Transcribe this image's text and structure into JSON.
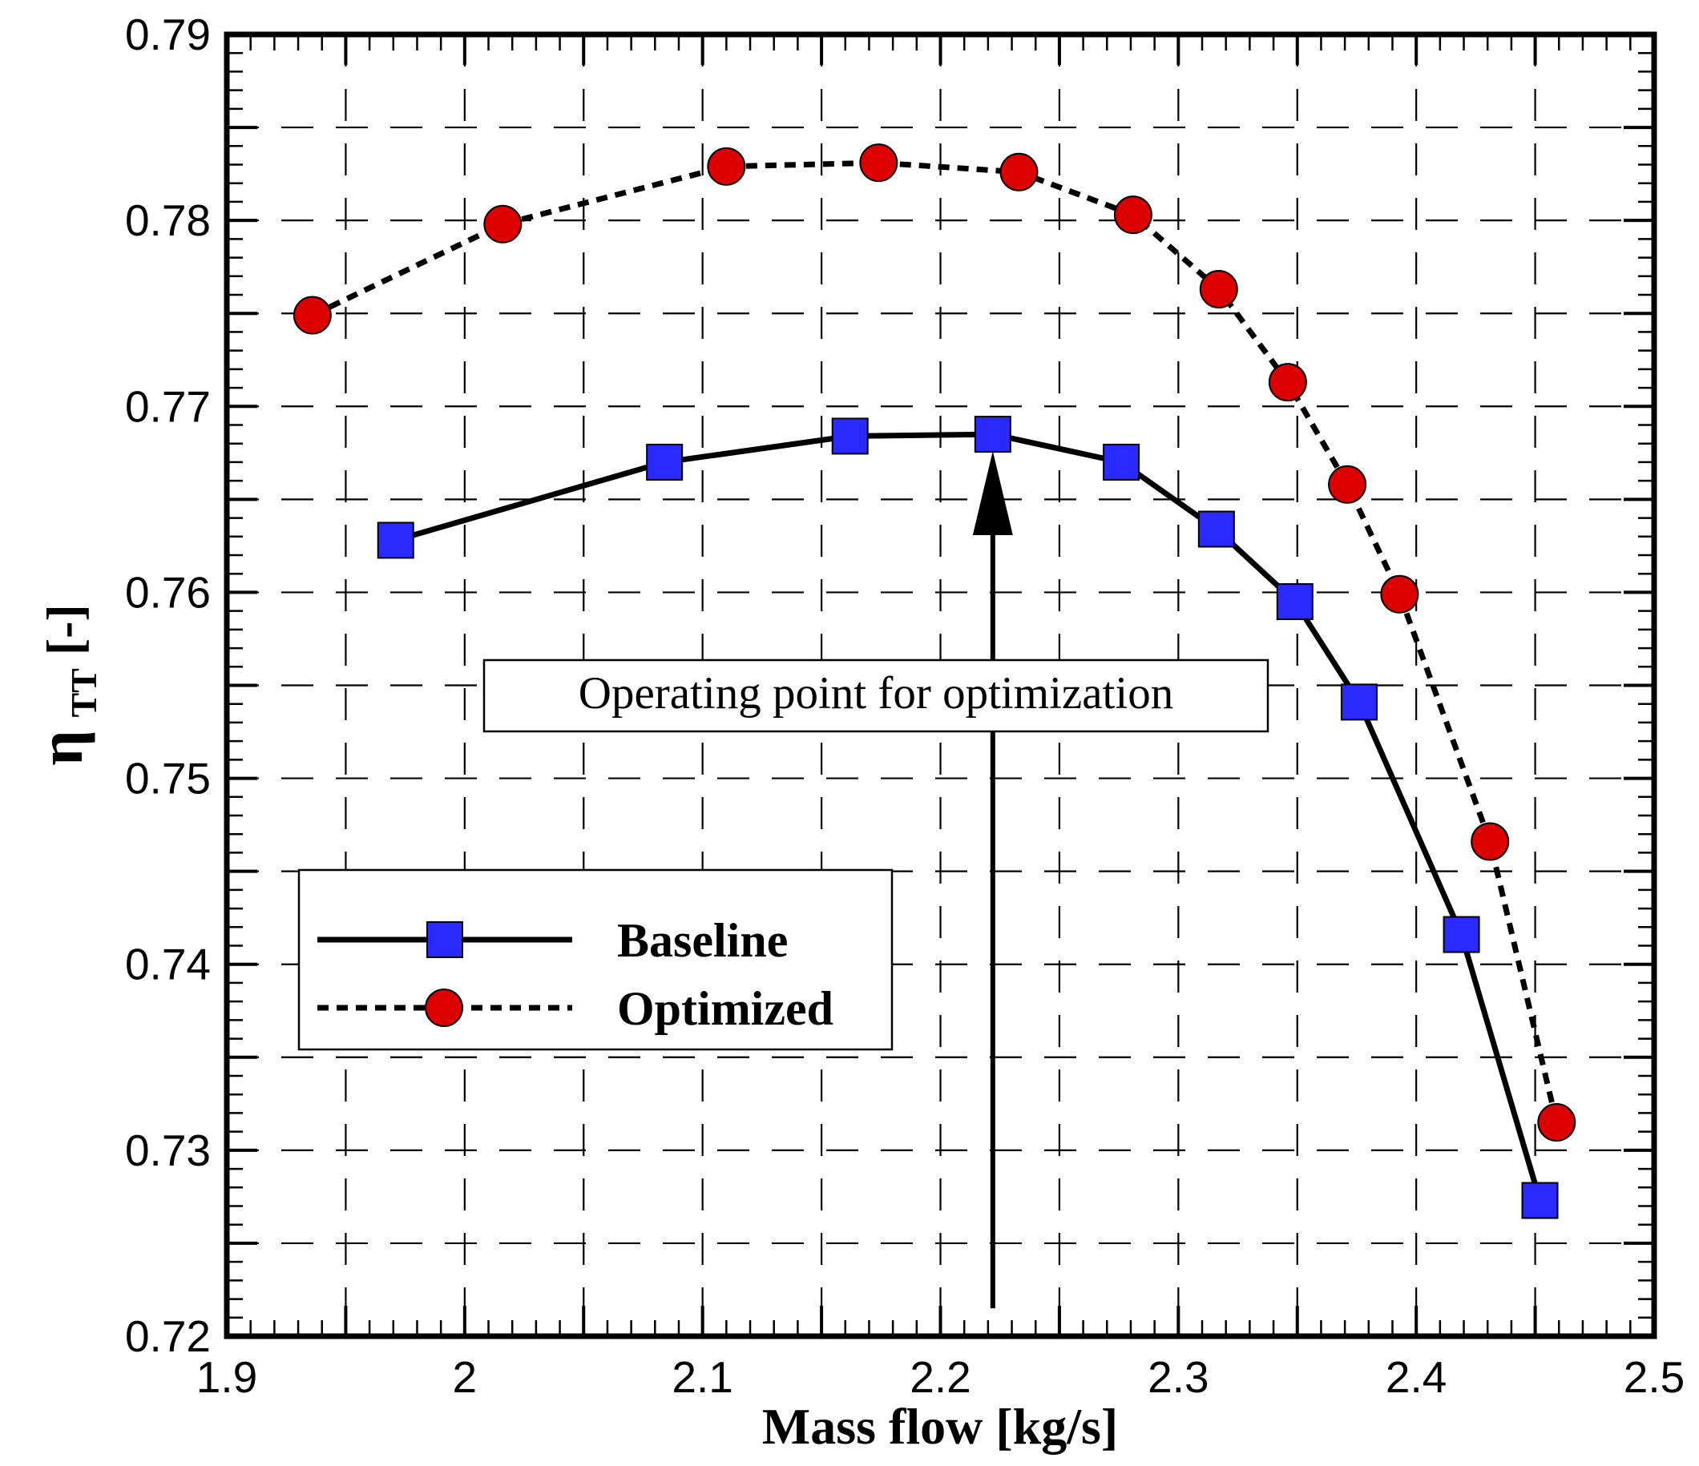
{
  "chart_data": {
    "type": "line",
    "xlabel": "Mass flow [kg/s]",
    "ylabel": {
      "symbol": "η",
      "subscript": "TT",
      "suffix": " [-]"
    },
    "xlim": [
      1.9,
      2.5
    ],
    "ylim": [
      0.72,
      0.79
    ],
    "xticks": [
      "1.9",
      "2",
      "2.1",
      "2.2",
      "2.3",
      "2.4",
      "2.5"
    ],
    "yticks": [
      "0.72",
      "0.73",
      "0.74",
      "0.75",
      "0.76",
      "0.77",
      "0.78",
      "0.79"
    ],
    "grid": true,
    "legend_position": "bottom-left",
    "series": [
      {
        "name": "Baseline",
        "line_style": "solid",
        "marker": "square",
        "color": "#2a2aff",
        "x": [
          1.971,
          2.084,
          2.162,
          2.222,
          2.276,
          2.316,
          2.349,
          2.376,
          2.419,
          2.452
        ],
        "y": [
          0.7628,
          0.767,
          0.7684,
          0.7685,
          0.767,
          0.7634,
          0.7595,
          0.7541,
          0.7416,
          0.7273
        ]
      },
      {
        "name": "Optimized",
        "line_style": "dashed",
        "marker": "circle",
        "color": "#dd0000",
        "x": [
          1.936,
          2.016,
          2.11,
          2.174,
          2.233,
          2.281,
          2.317,
          2.346,
          2.371,
          2.393,
          2.431,
          2.459
        ],
        "y": [
          0.7749,
          0.7798,
          0.7829,
          0.7831,
          0.7826,
          0.7803,
          0.7763,
          0.7713,
          0.7658,
          0.7599,
          0.7466,
          0.7315
        ]
      }
    ],
    "annotation": {
      "text": "Operating point for optimization",
      "arrow_x": 2.222,
      "arrow_from_y": 0.7215,
      "arrow_to_y": 0.7676
    }
  }
}
